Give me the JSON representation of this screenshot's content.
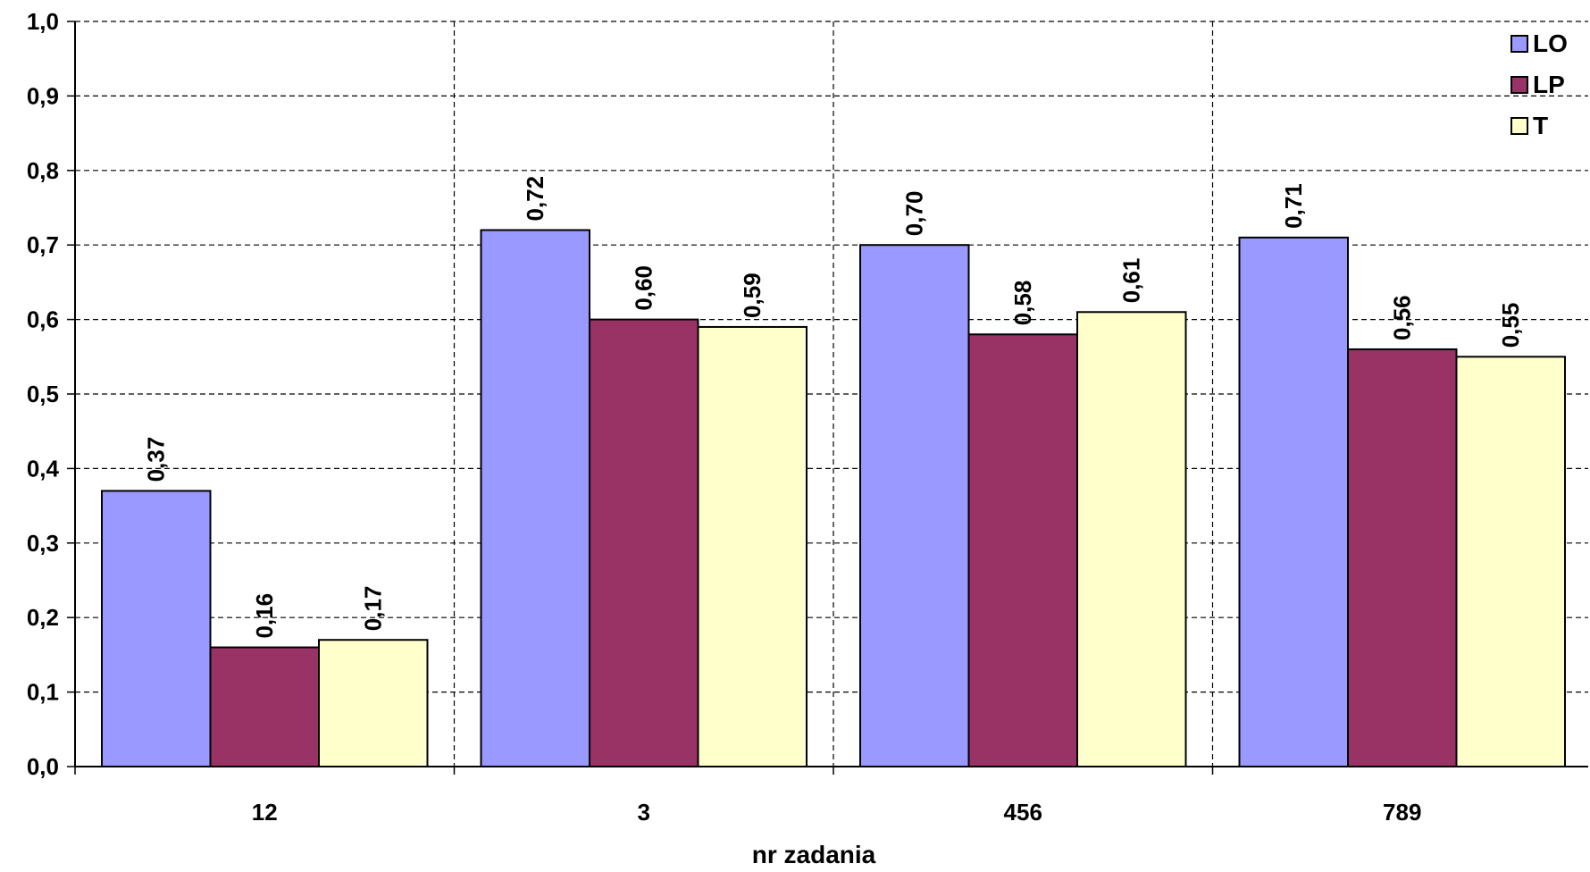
{
  "chart_data": {
    "type": "bar",
    "categories": [
      "12",
      "3",
      "456",
      "789"
    ],
    "series": [
      {
        "name": "LO",
        "color": "#9999FF",
        "values": [
          0.37,
          0.72,
          0.7,
          0.71
        ],
        "labels": [
          "0,37",
          "0,72",
          "0,70",
          "0,71"
        ]
      },
      {
        "name": "LP",
        "color": "#993366",
        "values": [
          0.16,
          0.6,
          0.58,
          0.56
        ],
        "labels": [
          "0,16",
          "0,60",
          "0,58",
          "0,56"
        ]
      },
      {
        "name": "T",
        "color": "#FFFFCC",
        "values": [
          0.17,
          0.59,
          0.61,
          0.55
        ],
        "labels": [
          "0,17",
          "0,59",
          "0,61",
          "0,55"
        ]
      }
    ],
    "yticks": [
      "0,0",
      "0,1",
      "0,2",
      "0,3",
      "0,4",
      "0,5",
      "0,6",
      "0,7",
      "0,8",
      "0,9",
      "1,0"
    ],
    "ylim": [
      0,
      1.0
    ],
    "xlabel": "nr zadania",
    "ylabel": "",
    "grid": true,
    "legend_position": "top-right"
  }
}
